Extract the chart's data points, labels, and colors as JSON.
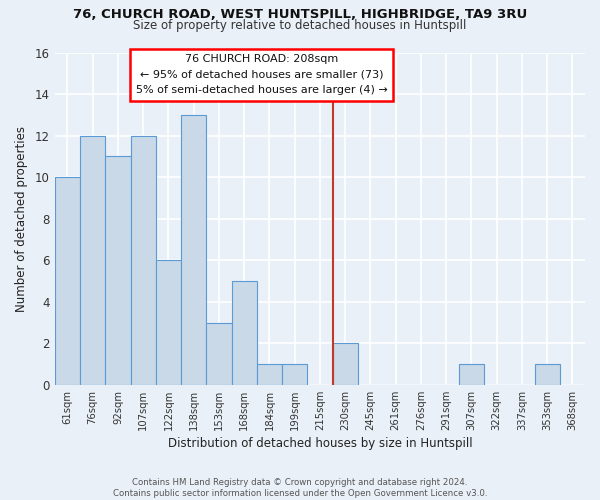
{
  "title": "76, CHURCH ROAD, WEST HUNTSPILL, HIGHBRIDGE, TA9 3RU",
  "subtitle": "Size of property relative to detached houses in Huntspill",
  "xlabel": "Distribution of detached houses by size in Huntspill",
  "ylabel": "Number of detached properties",
  "bin_labels": [
    "61sqm",
    "76sqm",
    "92sqm",
    "107sqm",
    "122sqm",
    "138sqm",
    "153sqm",
    "168sqm",
    "184sqm",
    "199sqm",
    "215sqm",
    "230sqm",
    "245sqm",
    "261sqm",
    "276sqm",
    "291sqm",
    "307sqm",
    "322sqm",
    "337sqm",
    "353sqm",
    "368sqm"
  ],
  "bar_heights": [
    10,
    12,
    11,
    12,
    6,
    13,
    3,
    5,
    1,
    1,
    0,
    2,
    0,
    0,
    0,
    0,
    1,
    0,
    0,
    1,
    0
  ],
  "bar_color": "#c9d9e8",
  "bar_edge_color": "#5b9bd5",
  "annotation_line1": "76 CHURCH ROAD: 208sqm",
  "annotation_line2": "← 95% of detached houses are smaller (73)",
  "annotation_line3": "5% of semi-detached houses are larger (4) →",
  "vline_x": 10.5,
  "vline_color": "#c0392b",
  "bg_color": "#eaf0f7",
  "grid_color": "#ffffff",
  "footer_text": "Contains HM Land Registry data © Crown copyright and database right 2024.\nContains public sector information licensed under the Open Government Licence v3.0.",
  "ylim": [
    0,
    16
  ],
  "yticks": [
    0,
    2,
    4,
    6,
    8,
    10,
    12,
    14,
    16
  ]
}
